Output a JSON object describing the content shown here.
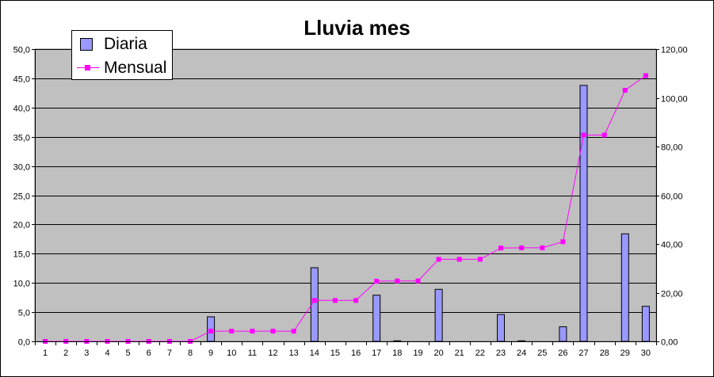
{
  "chart_data": {
    "type": "bar",
    "title": "Lluvia mes",
    "categories": [
      "1",
      "2",
      "3",
      "4",
      "5",
      "6",
      "7",
      "8",
      "9",
      "10",
      "11",
      "12",
      "13",
      "14",
      "15",
      "16",
      "17",
      "18",
      "19",
      "20",
      "21",
      "22",
      "23",
      "24",
      "25",
      "26",
      "27",
      "28",
      "29",
      "30"
    ],
    "series": [
      {
        "name": "Diaria",
        "type": "bar",
        "axis": "left",
        "color": "#9999ff",
        "values": [
          0,
          0,
          0,
          0,
          0,
          0,
          0,
          0,
          4.2,
          0,
          0,
          0,
          0,
          12.6,
          0,
          0,
          7.9,
          0.1,
          0,
          8.9,
          0,
          0,
          4.6,
          0.1,
          0,
          2.5,
          43.8,
          0,
          18.4,
          6.0
        ]
      },
      {
        "name": "Mensual",
        "type": "line",
        "axis": "right",
        "color": "#ff00ff",
        "values": [
          0,
          0,
          0,
          0,
          0,
          0,
          0,
          0,
          4.2,
          4.2,
          4.2,
          4.2,
          4.2,
          16.8,
          16.8,
          16.8,
          24.7,
          24.8,
          24.8,
          33.7,
          33.7,
          33.7,
          38.3,
          38.4,
          38.4,
          40.9,
          84.7,
          84.7,
          103.1,
          109.1
        ]
      }
    ],
    "y_left": {
      "range": [
        0,
        50
      ],
      "ticks": [
        "0,0",
        "5,0",
        "10,0",
        "15,0",
        "20,0",
        "25,0",
        "30,0",
        "35,0",
        "40,0",
        "45,0",
        "50,0"
      ]
    },
    "y_right": {
      "range": [
        0,
        120
      ],
      "ticks": [
        "0,00",
        "20,00",
        "40,00",
        "60,00",
        "80,00",
        "100,00",
        "120,00"
      ]
    },
    "grid": true,
    "plot_background": "#c0c0c0",
    "legend_position": "top-left"
  }
}
